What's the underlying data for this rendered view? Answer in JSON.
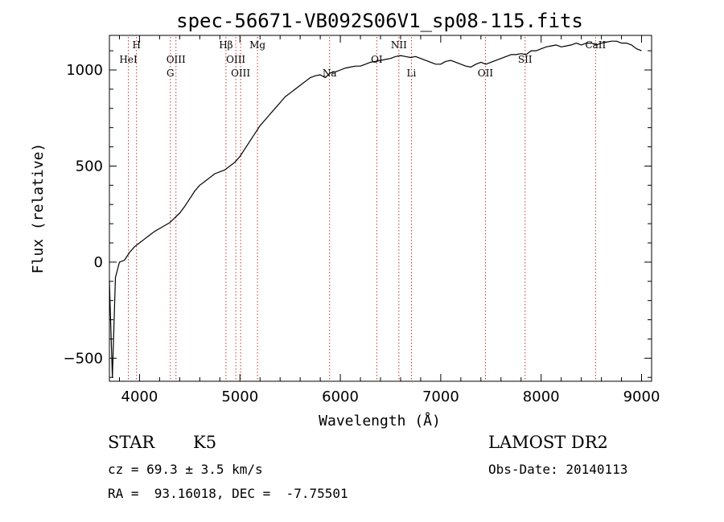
{
  "chart_data": {
    "type": "line",
    "title": "spec-56671-VB092S06V1_sp08-115.fits",
    "xlabel": "Wavelength (Å)",
    "ylabel": "Flux (relative)",
    "xlim": [
      3700,
      9100
    ],
    "ylim": [
      -620,
      1180
    ],
    "x_ticks": [
      4000,
      5000,
      6000,
      7000,
      8000,
      9000
    ],
    "y_ticks": [
      -500,
      0,
      500,
      1000
    ],
    "grid": false,
    "series": [
      {
        "x": [
          3700,
          3730,
          3760,
          3800,
          3850,
          3900,
          3950,
          4000,
          4050,
          4100,
          4150,
          4200,
          4250,
          4300,
          4350,
          4400,
          4450,
          4500,
          4550,
          4600,
          4650,
          4700,
          4750,
          4800,
          4850,
          4900,
          4950,
          5000,
          5050,
          5100,
          5150,
          5200,
          5250,
          5300,
          5350,
          5400,
          5450,
          5500,
          5550,
          5600,
          5650,
          5700,
          5750,
          5800,
          5850,
          5900,
          5950,
          6000,
          6050,
          6100,
          6150,
          6200,
          6250,
          6300,
          6350,
          6400,
          6450,
          6500,
          6550,
          6600,
          6650,
          6700,
          6750,
          6800,
          6850,
          6900,
          6950,
          7000,
          7050,
          7100,
          7150,
          7200,
          7250,
          7300,
          7350,
          7400,
          7450,
          7500,
          7550,
          7600,
          7650,
          7700,
          7750,
          7800,
          7850,
          7900,
          7950,
          8000,
          8050,
          8100,
          8150,
          8200,
          8250,
          8300,
          8350,
          8400,
          8450,
          8500,
          8550,
          8600,
          8650,
          8700,
          8750,
          8800,
          8850,
          8900,
          8950,
          9000
        ],
        "y": [
          -100,
          -600,
          -80,
          0,
          10,
          50,
          80,
          100,
          120,
          140,
          160,
          175,
          190,
          205,
          230,
          255,
          290,
          330,
          370,
          400,
          420,
          440,
          460,
          470,
          480,
          500,
          520,
          550,
          590,
          630,
          670,
          710,
          740,
          770,
          800,
          830,
          860,
          880,
          900,
          920,
          940,
          960,
          970,
          975,
          960,
          985,
          990,
          1000,
          1010,
          1015,
          1020,
          1020,
          1030,
          1040,
          1045,
          1050,
          1055,
          1060,
          1070,
          1075,
          1070,
          1065,
          1070,
          1060,
          1050,
          1040,
          1030,
          1030,
          1045,
          1050,
          1040,
          1030,
          1020,
          1015,
          1030,
          1040,
          1030,
          1040,
          1050,
          1060,
          1070,
          1080,
          1080,
          1085,
          1080,
          1100,
          1100,
          1110,
          1120,
          1125,
          1130,
          1120,
          1125,
          1130,
          1140,
          1130,
          1140,
          1140,
          1130,
          1140,
          1145,
          1150,
          1150,
          1140,
          1140,
          1130,
          1110,
          1100
        ]
      }
    ],
    "annotations": [
      {
        "label": "H",
        "x": 3970,
        "row": 0
      },
      {
        "label": "HeI",
        "x": 3889,
        "row": 1
      },
      {
        "label": "OIII",
        "x": 4363,
        "row": 1
      },
      {
        "label": "G",
        "x": 4307,
        "row": 2
      },
      {
        "label": "Hβ",
        "x": 4861,
        "row": 0
      },
      {
        "label": "OIII",
        "x": 4959,
        "row": 1
      },
      {
        "label": "OIII",
        "x": 5007,
        "row": 2
      },
      {
        "label": "Mg",
        "x": 5175,
        "row": 0
      },
      {
        "label": "Na",
        "x": 5893,
        "row": 2
      },
      {
        "label": "OI",
        "x": 6363,
        "row": 1
      },
      {
        "label": "NII",
        "x": 6583,
        "row": 0
      },
      {
        "label": "Li",
        "x": 6708,
        "row": 2
      },
      {
        "label": "OII",
        "x": 7445,
        "row": 2
      },
      {
        "label": "SII",
        "x": 7840,
        "row": 1
      },
      {
        "label": "CaII",
        "x": 8542,
        "row": 0
      }
    ]
  },
  "footer": {
    "class_label": "STAR",
    "subclass": "K5",
    "survey": "LAMOST DR2",
    "cz_text": "cz = 69.3 ± 3.5 km/s",
    "obs_date": "Obs-Date: 20140113",
    "coords": "RA =  93.16018, DEC =  -7.75501"
  }
}
